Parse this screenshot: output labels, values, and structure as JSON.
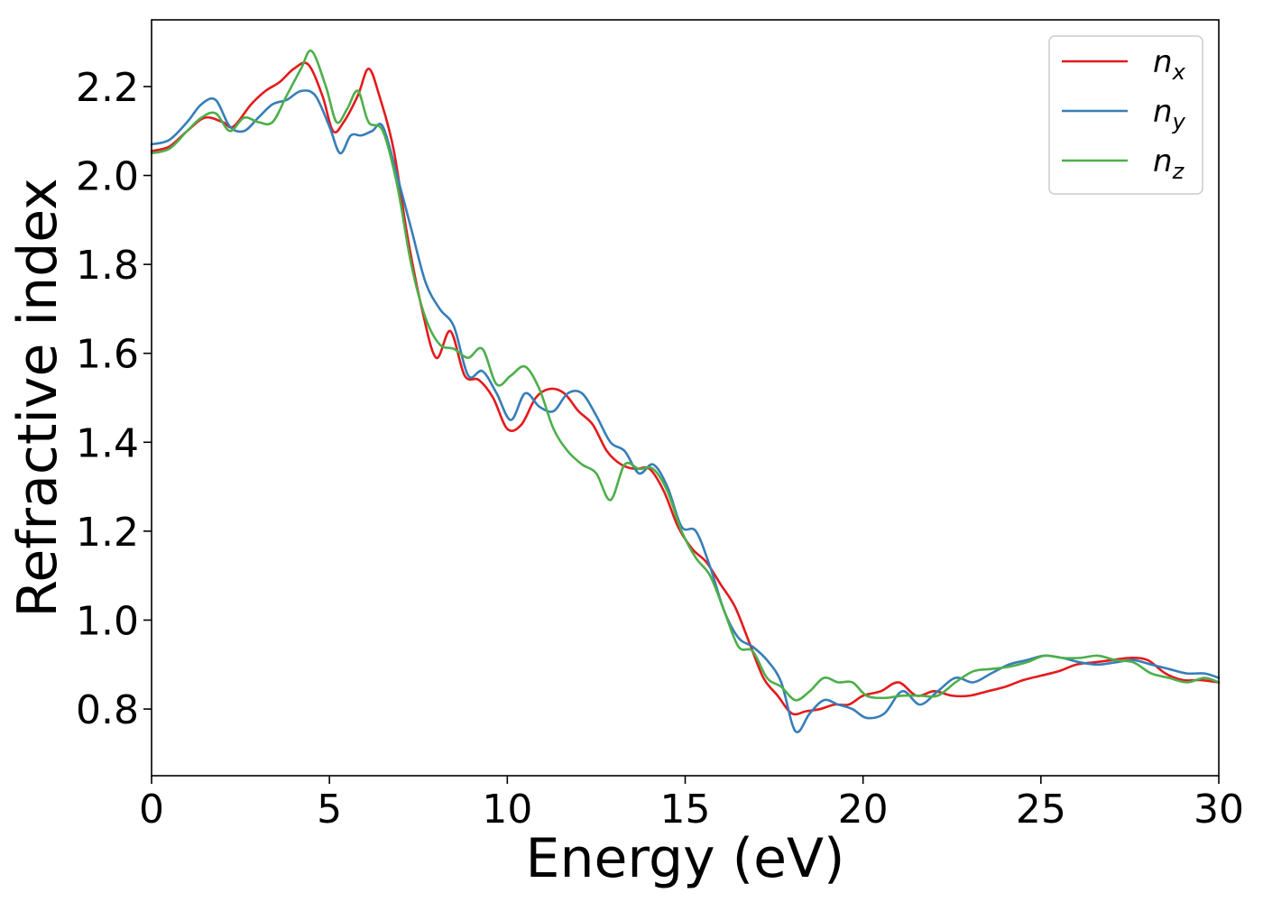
{
  "chart_data": {
    "type": "line",
    "xlabel": "Energy (eV)",
    "ylabel": "Refractive index",
    "xlim": [
      0,
      30
    ],
    "ylim": [
      0.65,
      2.35
    ],
    "xticks": [
      0,
      5,
      10,
      15,
      20,
      25,
      30
    ],
    "xtick_labels": [
      "0",
      "5",
      "10",
      "15",
      "20",
      "25",
      "30"
    ],
    "yticks": [
      0.8,
      1.0,
      1.2,
      1.4,
      1.6,
      1.8,
      2.0,
      2.2
    ],
    "ytick_labels": [
      "0.8",
      "1.0",
      "1.2",
      "1.4",
      "1.6",
      "1.8",
      "2.0",
      "2.2"
    ],
    "grid": false,
    "legend_position": "top-right",
    "series": [
      {
        "name": "n_x",
        "subscript": "x",
        "color": "#e41a1c",
        "x": [
          0,
          0.5,
          1,
          1.5,
          2,
          2.3,
          2.8,
          3.2,
          3.6,
          4,
          4.4,
          4.8,
          5.1,
          5.4,
          5.8,
          6.1,
          6.4,
          6.8,
          7.2,
          7.6,
          8,
          8.4,
          8.8,
          9.2,
          9.6,
          10,
          10.4,
          10.8,
          11.2,
          11.6,
          12,
          12.4,
          12.8,
          13.2,
          13.6,
          14,
          14.4,
          14.8,
          15.2,
          15.6,
          16,
          16.4,
          16.8,
          17.2,
          17.6,
          18,
          18.4,
          18.8,
          19.2,
          19.6,
          20,
          20.5,
          21,
          21.5,
          22,
          22.5,
          23,
          23.5,
          24,
          24.5,
          25,
          25.5,
          26,
          26.5,
          27,
          27.5,
          28,
          28.5,
          29,
          29.5,
          30
        ],
        "y": [
          2.055,
          2.065,
          2.1,
          2.13,
          2.12,
          2.11,
          2.16,
          2.19,
          2.21,
          2.24,
          2.25,
          2.18,
          2.1,
          2.12,
          2.18,
          2.24,
          2.18,
          2.06,
          1.86,
          1.7,
          1.59,
          1.65,
          1.55,
          1.54,
          1.5,
          1.43,
          1.44,
          1.5,
          1.52,
          1.51,
          1.47,
          1.44,
          1.38,
          1.35,
          1.34,
          1.34,
          1.29,
          1.21,
          1.16,
          1.13,
          1.08,
          1.03,
          0.95,
          0.87,
          0.83,
          0.79,
          0.795,
          0.8,
          0.81,
          0.81,
          0.83,
          0.84,
          0.86,
          0.83,
          0.84,
          0.83,
          0.83,
          0.84,
          0.85,
          0.865,
          0.875,
          0.885,
          0.9,
          0.905,
          0.91,
          0.915,
          0.91,
          0.88,
          0.865,
          0.865,
          0.86
        ]
      },
      {
        "name": "n_y",
        "subscript": "y",
        "color": "#377eb8",
        "x": [
          0,
          0.5,
          1,
          1.4,
          1.8,
          2.2,
          2.6,
          3,
          3.4,
          3.8,
          4.2,
          4.6,
          5,
          5.3,
          5.6,
          5.9,
          6.2,
          6.5,
          6.9,
          7.3,
          7.7,
          8.1,
          8.5,
          8.9,
          9.3,
          9.7,
          10.1,
          10.5,
          10.9,
          11.3,
          11.7,
          12.1,
          12.5,
          12.9,
          13.3,
          13.7,
          14.1,
          14.5,
          14.9,
          15.3,
          15.7,
          16.1,
          16.5,
          16.9,
          17.3,
          17.7,
          18.1,
          18.5,
          18.9,
          19.3,
          19.7,
          20.1,
          20.6,
          21.1,
          21.6,
          22.1,
          22.6,
          23.1,
          23.6,
          24.1,
          24.6,
          25.1,
          25.6,
          26.1,
          26.6,
          27.1,
          27.6,
          28.1,
          28.6,
          29.1,
          29.6,
          30
        ],
        "y": [
          2.07,
          2.08,
          2.12,
          2.16,
          2.17,
          2.11,
          2.1,
          2.13,
          2.16,
          2.17,
          2.19,
          2.18,
          2.11,
          2.05,
          2.09,
          2.09,
          2.1,
          2.11,
          2.0,
          1.88,
          1.76,
          1.7,
          1.66,
          1.55,
          1.56,
          1.51,
          1.45,
          1.51,
          1.48,
          1.47,
          1.51,
          1.51,
          1.46,
          1.4,
          1.38,
          1.33,
          1.35,
          1.3,
          1.21,
          1.2,
          1.12,
          1.02,
          0.96,
          0.94,
          0.91,
          0.86,
          0.75,
          0.79,
          0.82,
          0.81,
          0.8,
          0.78,
          0.79,
          0.84,
          0.81,
          0.84,
          0.87,
          0.86,
          0.88,
          0.9,
          0.91,
          0.92,
          0.915,
          0.905,
          0.9,
          0.905,
          0.91,
          0.9,
          0.89,
          0.88,
          0.88,
          0.87
        ]
      },
      {
        "name": "n_z",
        "subscript": "z",
        "color": "#4daf4a",
        "x": [
          0,
          0.5,
          1,
          1.4,
          1.8,
          2.2,
          2.6,
          3,
          3.4,
          3.8,
          4.2,
          4.5,
          4.9,
          5.2,
          5.5,
          5.8,
          6.1,
          6.5,
          6.9,
          7.3,
          7.7,
          8.1,
          8.5,
          8.9,
          9.3,
          9.7,
          10.1,
          10.5,
          10.9,
          11.3,
          11.7,
          12.1,
          12.5,
          12.9,
          13.3,
          13.7,
          14.1,
          14.5,
          14.9,
          15.3,
          15.7,
          16.1,
          16.5,
          16.9,
          17.3,
          17.7,
          18.1,
          18.5,
          18.9,
          19.3,
          19.7,
          20.1,
          20.6,
          21.1,
          21.6,
          22.1,
          22.6,
          23.1,
          23.6,
          24.1,
          24.6,
          25.1,
          25.6,
          26.1,
          26.6,
          27.1,
          27.6,
          28.1,
          28.6,
          29.1,
          29.6,
          30
        ],
        "y": [
          2.05,
          2.06,
          2.1,
          2.13,
          2.14,
          2.1,
          2.13,
          2.12,
          2.12,
          2.18,
          2.24,
          2.28,
          2.2,
          2.12,
          2.15,
          2.19,
          2.12,
          2.1,
          1.98,
          1.8,
          1.68,
          1.62,
          1.61,
          1.59,
          1.61,
          1.53,
          1.55,
          1.57,
          1.52,
          1.43,
          1.38,
          1.35,
          1.33,
          1.27,
          1.35,
          1.34,
          1.34,
          1.29,
          1.2,
          1.14,
          1.1,
          1.02,
          0.94,
          0.93,
          0.87,
          0.85,
          0.82,
          0.84,
          0.87,
          0.86,
          0.86,
          0.83,
          0.825,
          0.83,
          0.83,
          0.83,
          0.86,
          0.885,
          0.89,
          0.895,
          0.905,
          0.92,
          0.915,
          0.915,
          0.92,
          0.91,
          0.905,
          0.88,
          0.87,
          0.86,
          0.87,
          0.86
        ]
      }
    ]
  }
}
